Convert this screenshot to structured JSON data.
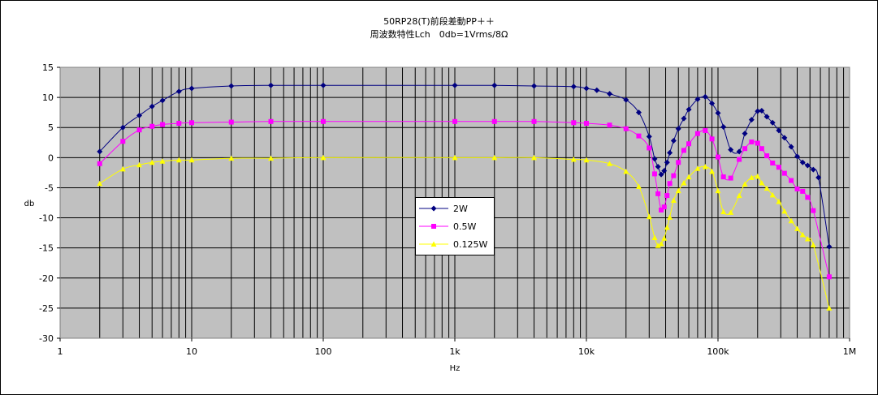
{
  "chart_data": {
    "type": "line",
    "title": "50RP28(T)前段差動PP＋＋",
    "subtitle": "周波数特性Lch　0db=1Vrms/8Ω",
    "xlabel": "Hz",
    "ylabel": "db",
    "xscale": "log",
    "xlim": [
      1,
      1000000
    ],
    "ylim": [
      -30,
      15
    ],
    "yticks": [
      15,
      10,
      5,
      0,
      -5,
      -10,
      -15,
      -20,
      -25,
      -30
    ],
    "yticklabels": [
      "15",
      "10",
      "5",
      "0",
      "-5",
      "-10",
      "-15",
      "-20",
      "-25",
      "-30"
    ],
    "xticks": [
      1,
      10,
      100,
      1000,
      10000,
      100000,
      1000000
    ],
    "xticklabels": [
      "1",
      "10",
      "100",
      "1k",
      "10k",
      "100k",
      "1M"
    ],
    "grid": true,
    "plot_background": "#c0c0c0",
    "legend_position": "center-left",
    "series": [
      {
        "name": "2W",
        "color": "#000080",
        "marker": "diamond",
        "points": [
          [
            2,
            1
          ],
          [
            3,
            5
          ],
          [
            4,
            7
          ],
          [
            5,
            8.5
          ],
          [
            6,
            9.5
          ],
          [
            8,
            11
          ],
          [
            10,
            11.5
          ],
          [
            20,
            11.9
          ],
          [
            40,
            12
          ],
          [
            100,
            12
          ],
          [
            1000,
            12
          ],
          [
            2000,
            12
          ],
          [
            4000,
            11.9
          ],
          [
            8000,
            11.8
          ],
          [
            10000,
            11.5
          ],
          [
            12000,
            11.2
          ],
          [
            15000,
            10.6
          ],
          [
            20000,
            9.6
          ],
          [
            25000,
            7.5
          ],
          [
            30000,
            3.5
          ],
          [
            33000,
            -0.2
          ],
          [
            35000,
            -1.5
          ],
          [
            37000,
            -2.8
          ],
          [
            39000,
            -2.2
          ],
          [
            41000,
            -0.8
          ],
          [
            43000,
            0.8
          ],
          [
            46000,
            2.8
          ],
          [
            50000,
            4.8
          ],
          [
            55000,
            6.5
          ],
          [
            60000,
            8
          ],
          [
            70000,
            9.7
          ],
          [
            80000,
            10.1
          ],
          [
            90000,
            9
          ],
          [
            100000,
            7.4
          ],
          [
            110000,
            5.1
          ],
          [
            125000,
            1.3
          ],
          [
            145000,
            1
          ],
          [
            160000,
            4
          ],
          [
            180000,
            6.3
          ],
          [
            200000,
            7.7
          ],
          [
            215000,
            7.8
          ],
          [
            235000,
            6.8
          ],
          [
            260000,
            5.8
          ],
          [
            290000,
            4.5
          ],
          [
            320000,
            3.3
          ],
          [
            360000,
            1.8
          ],
          [
            400000,
            0.2
          ],
          [
            440000,
            -0.8
          ],
          [
            480000,
            -1.3
          ],
          [
            530000,
            -2
          ],
          [
            580000,
            -3.3
          ],
          [
            700000,
            -14.8
          ]
        ]
      },
      {
        "name": "0.5W",
        "color": "#ff00ff",
        "marker": "square",
        "points": [
          [
            2,
            -1
          ],
          [
            3,
            2.7
          ],
          [
            4,
            4.6
          ],
          [
            5,
            5.2
          ],
          [
            6,
            5.5
          ],
          [
            8,
            5.7
          ],
          [
            10,
            5.8
          ],
          [
            20,
            5.9
          ],
          [
            40,
            6
          ],
          [
            100,
            6
          ],
          [
            1000,
            6
          ],
          [
            2000,
            6
          ],
          [
            4000,
            6
          ],
          [
            8000,
            5.8
          ],
          [
            10000,
            5.7
          ],
          [
            15000,
            5.4
          ],
          [
            20000,
            4.8
          ],
          [
            25000,
            3.6
          ],
          [
            30000,
            1.6
          ],
          [
            33000,
            -2.7
          ],
          [
            35000,
            -6
          ],
          [
            37000,
            -8.7
          ],
          [
            39000,
            -8.2
          ],
          [
            41000,
            -6.3
          ],
          [
            43000,
            -4.3
          ],
          [
            46000,
            -3
          ],
          [
            50000,
            -0.8
          ],
          [
            55000,
            1.2
          ],
          [
            60000,
            2.3
          ],
          [
            70000,
            4
          ],
          [
            80000,
            4.5
          ],
          [
            90000,
            3.1
          ],
          [
            100000,
            0.1
          ],
          [
            110000,
            -3.2
          ],
          [
            125000,
            -3.4
          ],
          [
            145000,
            -0.3
          ],
          [
            160000,
            1.5
          ],
          [
            180000,
            2.6
          ],
          [
            200000,
            2.4
          ],
          [
            215000,
            1.5
          ],
          [
            235000,
            0.3
          ],
          [
            260000,
            -0.9
          ],
          [
            290000,
            -1.6
          ],
          [
            320000,
            -2.6
          ],
          [
            360000,
            -3.8
          ],
          [
            400000,
            -5.2
          ],
          [
            440000,
            -5.6
          ],
          [
            480000,
            -6.6
          ],
          [
            530000,
            -8.8
          ],
          [
            700000,
            -19.8
          ]
        ]
      },
      {
        "name": "0.125W",
        "color": "#ffff00",
        "marker": "triangle",
        "points": [
          [
            2,
            -4.3
          ],
          [
            3,
            -1.9
          ],
          [
            4,
            -1.2
          ],
          [
            5,
            -0.8
          ],
          [
            6,
            -0.6
          ],
          [
            8,
            -0.4
          ],
          [
            10,
            -0.4
          ],
          [
            20,
            -0.1
          ],
          [
            40,
            -0.1
          ],
          [
            100,
            0
          ],
          [
            1000,
            0
          ],
          [
            2000,
            0
          ],
          [
            4000,
            0
          ],
          [
            8000,
            -0.3
          ],
          [
            10000,
            -0.4
          ],
          [
            15000,
            -1
          ],
          [
            20000,
            -2.3
          ],
          [
            25000,
            -4.8
          ],
          [
            30000,
            -9.8
          ],
          [
            33000,
            -13.3
          ],
          [
            35000,
            -14.6
          ],
          [
            37000,
            -14.3
          ],
          [
            39000,
            -13.4
          ],
          [
            41000,
            -11.6
          ],
          [
            43000,
            -9.9
          ],
          [
            46000,
            -7.1
          ],
          [
            50000,
            -5.5
          ],
          [
            55000,
            -4.2
          ],
          [
            60000,
            -3.2
          ],
          [
            70000,
            -1.8
          ],
          [
            80000,
            -1.5
          ],
          [
            90000,
            -2.3
          ],
          [
            100000,
            -5.5
          ],
          [
            110000,
            -9
          ],
          [
            125000,
            -9.1
          ],
          [
            145000,
            -6.3
          ],
          [
            160000,
            -4.4
          ],
          [
            180000,
            -3.3
          ],
          [
            200000,
            -3.1
          ],
          [
            215000,
            -4.2
          ],
          [
            235000,
            -5.1
          ],
          [
            260000,
            -6.2
          ],
          [
            290000,
            -7.3
          ],
          [
            320000,
            -8.9
          ],
          [
            360000,
            -10.5
          ],
          [
            400000,
            -11.8
          ],
          [
            440000,
            -12.8
          ],
          [
            480000,
            -13.5
          ],
          [
            530000,
            -14.5
          ],
          [
            700000,
            -25
          ]
        ]
      }
    ]
  }
}
